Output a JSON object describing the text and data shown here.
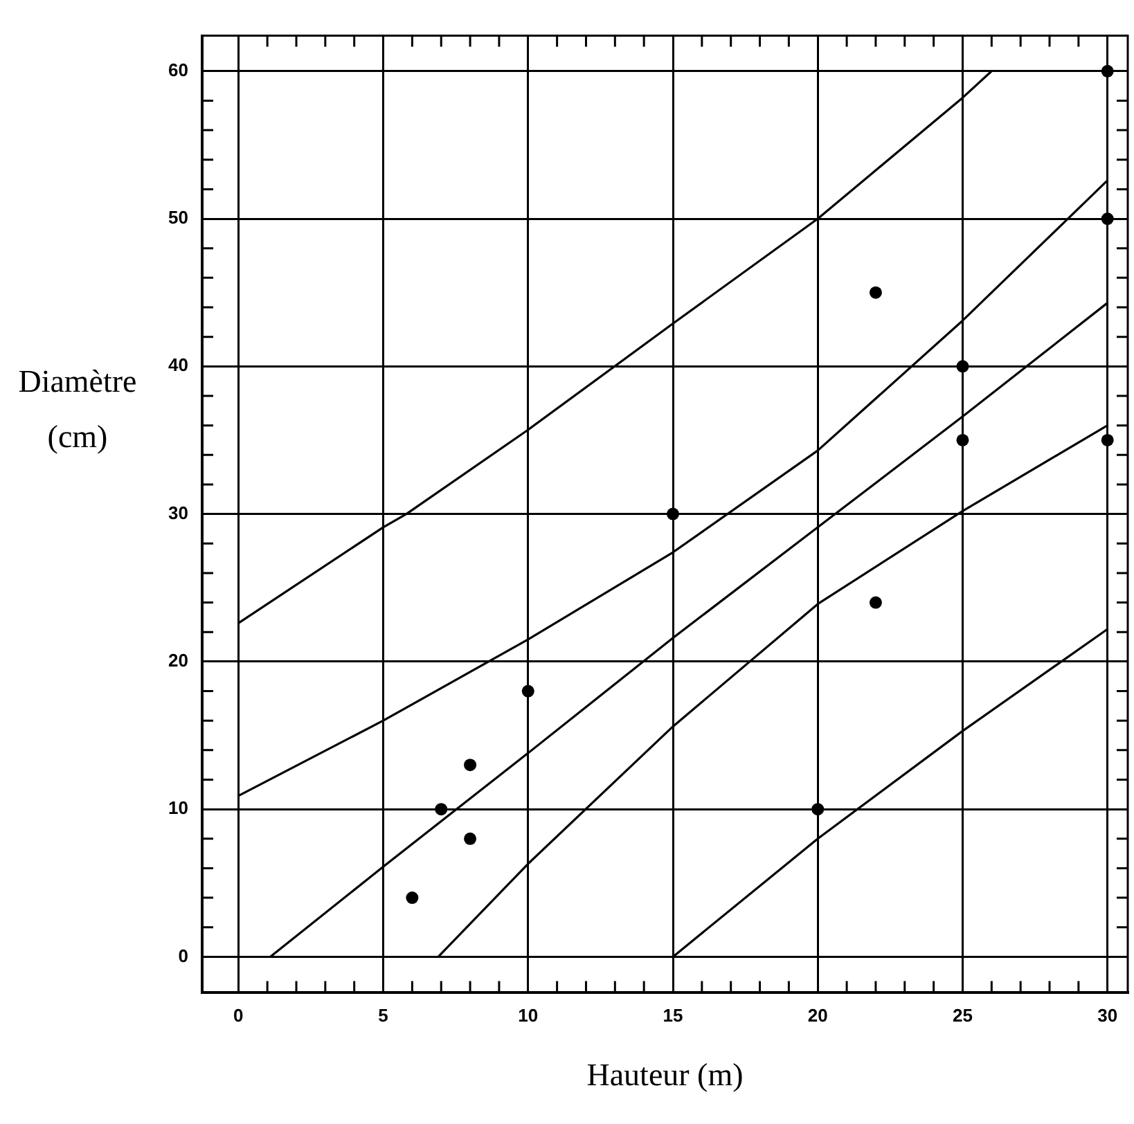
{
  "chart_data": {
    "type": "scatter",
    "xlabel": "Hauteur (m)",
    "ylabel": "Diamètre\n(cm)",
    "xlim": [
      -1.25,
      30.7
    ],
    "ylim": [
      -2.4,
      62.4
    ],
    "xticks": [
      0,
      {
        "value": 1,
        "label": null
      },
      {
        "value": 2,
        "label": null
      },
      {
        "value": 3,
        "label": null
      },
      {
        "value": 4,
        "label": null
      },
      5,
      {
        "value": 6,
        "label": null
      },
      {
        "value": 7,
        "label": null
      },
      {
        "value": 8,
        "label": null
      },
      {
        "value": 9,
        "label": null
      },
      10,
      {
        "value": 11,
        "label": null
      },
      {
        "value": 12,
        "label": null
      },
      {
        "value": 13,
        "label": null
      },
      {
        "value": 14,
        "label": null
      },
      15,
      {
        "value": 16,
        "label": null
      },
      {
        "value": 17,
        "label": null
      },
      {
        "value": 18,
        "label": null
      },
      {
        "value": 19,
        "label": null
      },
      20,
      {
        "value": 21,
        "label": null
      },
      {
        "value": 22,
        "label": null
      },
      {
        "value": 23,
        "label": null
      },
      {
        "value": 24,
        "label": null
      },
      25,
      {
        "value": 26,
        "label": null
      },
      {
        "value": 27,
        "label": null
      },
      {
        "value": 28,
        "label": null
      },
      {
        "value": 29,
        "label": null
      },
      30
    ],
    "yticks": [
      0,
      {
        "value": 2,
        "label": null
      },
      {
        "value": 4,
        "label": null
      },
      {
        "value": 6,
        "label": null
      },
      {
        "value": 8,
        "label": null
      },
      10,
      {
        "value": 12,
        "label": null
      },
      {
        "value": 14,
        "label": null
      },
      {
        "value": 16,
        "label": null
      },
      {
        "value": 18,
        "label": null
      },
      20,
      {
        "value": 22,
        "label": null
      },
      {
        "value": 24,
        "label": null
      },
      {
        "value": 26,
        "label": null
      },
      {
        "value": 28,
        "label": null
      },
      30,
      {
        "value": 32,
        "label": null
      },
      {
        "value": 34,
        "label": null
      },
      {
        "value": 36,
        "label": null
      },
      {
        "value": 38,
        "label": null
      },
      40,
      {
        "value": 42,
        "label": null
      },
      {
        "value": 44,
        "label": null
      },
      {
        "value": 46,
        "label": null
      },
      {
        "value": 48,
        "label": null
      },
      50,
      {
        "value": 52,
        "label": null
      },
      {
        "value": 54,
        "label": null
      },
      {
        "value": 56,
        "label": null
      },
      {
        "value": 58,
        "label": null
      },
      60
    ],
    "grid": true,
    "legend": false,
    "series": [
      {
        "type": "scatter",
        "marker": "circle",
        "color": "#000000",
        "x": [
          6,
          7,
          8,
          8,
          10,
          15,
          20,
          22,
          22,
          25,
          25,
          30,
          30,
          30
        ],
        "values": [
          4,
          10,
          13,
          8,
          18,
          30,
          10,
          45,
          24,
          40,
          35,
          60,
          50,
          35
        ]
      },
      {
        "type": "line",
        "marker": "none",
        "line_style": "solid",
        "color": "#000000",
        "x": [
          0,
          5,
          5.8,
          10,
          15,
          20,
          25,
          26
        ],
        "values": [
          22.6,
          29.1,
          30,
          35.7,
          42.9,
          50,
          58.2,
          60
        ]
      },
      {
        "type": "line",
        "marker": "none",
        "line_style": "solid",
        "color": "#000000",
        "x": [
          0,
          5,
          10,
          15,
          20,
          25,
          30
        ],
        "values": [
          10.9,
          16,
          21.5,
          27.4,
          34.3,
          43.1,
          52.6
        ]
      },
      {
        "type": "line",
        "marker": "none",
        "line_style": "solid",
        "color": "#000000",
        "x": [
          1.1,
          5,
          10,
          15,
          20,
          25,
          30
        ],
        "values": [
          0,
          6.1,
          13.8,
          21.6,
          29.1,
          36.6,
          44.3
        ]
      },
      {
        "type": "line",
        "marker": "none",
        "line_style": "solid",
        "color": "#000000",
        "x": [
          6.9,
          10,
          15,
          20,
          25,
          30
        ],
        "values": [
          0,
          6.3,
          15.6,
          23.9,
          30.2,
          36
        ]
      },
      {
        "type": "line",
        "marker": "none",
        "line_style": "solid",
        "color": "#000000",
        "x": [
          15,
          20,
          25,
          30
        ],
        "values": [
          0,
          8,
          15.3,
          22.2
        ]
      }
    ]
  }
}
